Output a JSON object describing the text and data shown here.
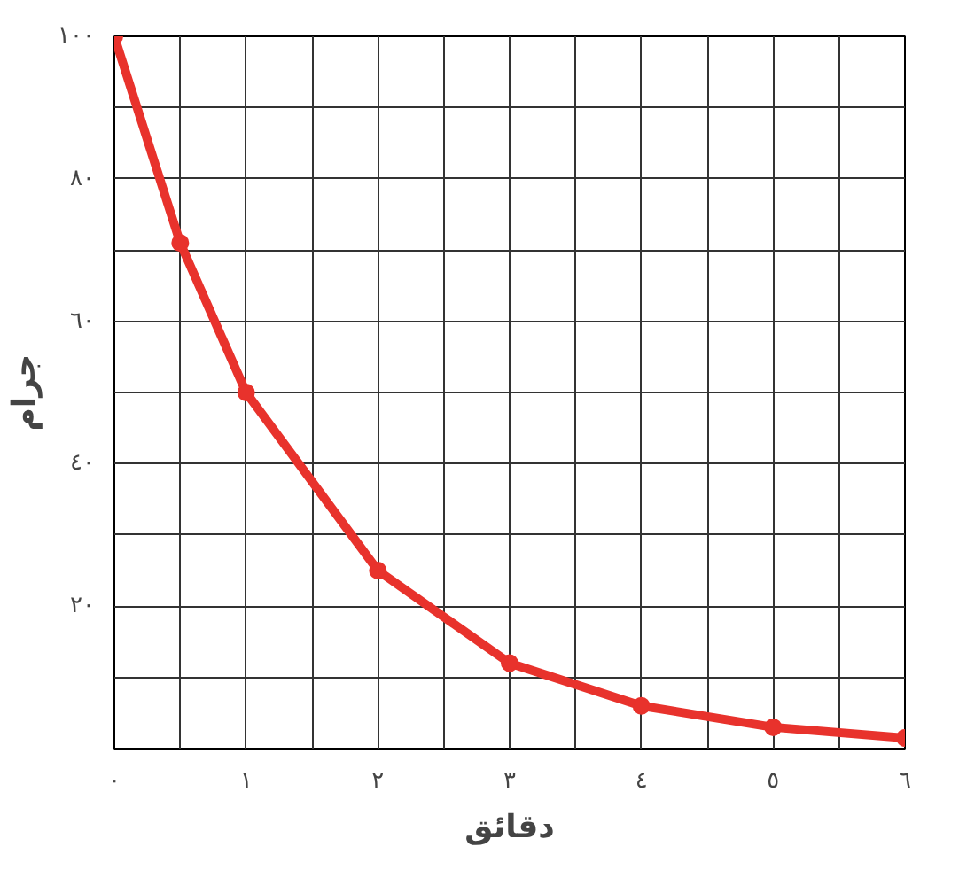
{
  "chart_data": {
    "type": "line",
    "xlabel": "دقائق",
    "ylabel": "جرام",
    "x": [
      0,
      0.5,
      1,
      2,
      3,
      4,
      5,
      6
    ],
    "series": [
      {
        "color": "#e8322c",
        "values": [
          100,
          71,
          50,
          25,
          12,
          6,
          3,
          1.5
        ]
      }
    ],
    "xlim": [
      0,
      6
    ],
    "ylim": [
      0,
      100
    ],
    "xticks": [
      {
        "value": 0,
        "label": "٠"
      },
      {
        "value": 0.5,
        "label": null
      },
      {
        "value": 1,
        "label": "١"
      },
      {
        "value": 1.5,
        "label": null
      },
      {
        "value": 2,
        "label": "٢"
      },
      {
        "value": 2.5,
        "label": null
      },
      {
        "value": 3,
        "label": "٣"
      },
      {
        "value": 3.5,
        "label": null
      },
      {
        "value": 4,
        "label": "٤"
      },
      {
        "value": 4.5,
        "label": null
      },
      {
        "value": 5,
        "label": "٥"
      },
      {
        "value": 5.5,
        "label": null
      },
      {
        "value": 6,
        "label": "٦"
      }
    ],
    "yticks": [
      {
        "value": 0,
        "label": null
      },
      {
        "value": 10,
        "label": null
      },
      {
        "value": 20,
        "label": "٢٠"
      },
      {
        "value": 30,
        "label": null
      },
      {
        "value": 40,
        "label": "٤٠"
      },
      {
        "value": 50,
        "label": null
      },
      {
        "value": 60,
        "label": "٦٠"
      },
      {
        "value": 70,
        "label": null
      },
      {
        "value": 80,
        "label": "٨٠"
      },
      {
        "value": 90,
        "label": null
      },
      {
        "value": 100,
        "label": "١٠٠"
      }
    ],
    "grid": true,
    "marker": "circle",
    "line_style": "solid"
  }
}
